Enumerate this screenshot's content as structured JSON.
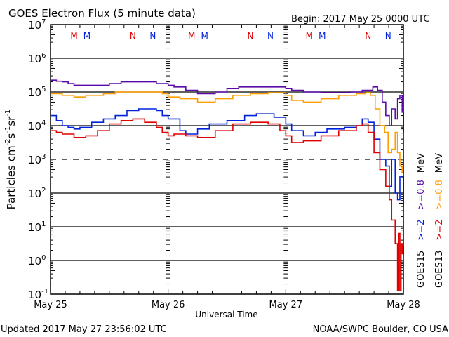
{
  "chart_data": {
    "type": "line",
    "title": "GOES Electron Flux (5 minute data)",
    "subtitle": "Begin: 2017 May 25 0000 UTC",
    "xlabel": "Universal Time",
    "ylabel_parts": [
      "Particles cm",
      "-2",
      "s",
      "-1",
      "sr",
      "-1"
    ],
    "yscale": "log",
    "ylim_exp": [
      -1,
      7
    ],
    "ytick_labels": [
      {
        "base": "10",
        "exp": "7"
      },
      {
        "base": "10",
        "exp": "6"
      },
      {
        "base": "10",
        "exp": "5"
      },
      {
        "base": "10",
        "exp": "4"
      },
      {
        "base": "10",
        "exp": "3"
      },
      {
        "base": "10",
        "exp": "2"
      },
      {
        "base": "10",
        "exp": "1"
      },
      {
        "base": "10",
        "exp": "0"
      },
      {
        "base": "10",
        "exp": "-1"
      }
    ],
    "xlim_days": [
      0,
      3
    ],
    "xtick_labels": [
      "May 25",
      "May 26",
      "May 27",
      "May 28"
    ],
    "grid": "horizontal lines at each decade; dashed at 10^3",
    "markers": [
      {
        "label": "M",
        "color": "#e00000",
        "day": 0.2
      },
      {
        "label": "M",
        "color": "#0022dd",
        "day": 0.31
      },
      {
        "label": "N",
        "color": "#e00000",
        "day": 0.7
      },
      {
        "label": "N",
        "color": "#0022dd",
        "day": 0.87
      },
      {
        "label": "M",
        "color": "#e00000",
        "day": 1.2
      },
      {
        "label": "M",
        "color": "#0022dd",
        "day": 1.31
      },
      {
        "label": "N",
        "color": "#e00000",
        "day": 1.7
      },
      {
        "label": "N",
        "color": "#0022dd",
        "day": 1.87
      },
      {
        "label": "M",
        "color": "#e00000",
        "day": 2.2
      },
      {
        "label": "M",
        "color": "#0022dd",
        "day": 2.31
      },
      {
        "label": "N",
        "color": "#e00000",
        "day": 2.7
      },
      {
        "label": "N",
        "color": "#0022dd",
        "day": 2.87
      }
    ],
    "series": [
      {
        "name": "GOES15 >=0.8 MeV",
        "color": "#5a0aa8",
        "x": [
          0,
          0.05,
          0.1,
          0.15,
          0.2,
          0.3,
          0.4,
          0.5,
          0.6,
          0.7,
          0.8,
          0.9,
          1.0,
          1.05,
          1.15,
          1.25,
          1.4,
          1.5,
          1.6,
          1.7,
          1.8,
          1.9,
          2.0,
          2.05,
          2.15,
          2.3,
          2.45,
          2.55,
          2.65,
          2.7,
          2.74,
          2.78,
          2.82,
          2.85,
          2.88,
          2.9,
          2.93,
          2.95,
          2.97,
          2.99,
          3.0
        ],
        "y_log10": [
          5.35,
          5.32,
          5.3,
          5.25,
          5.2,
          5.2,
          5.2,
          5.25,
          5.3,
          5.3,
          5.3,
          5.25,
          5.2,
          5.15,
          5.05,
          4.95,
          5.0,
          5.1,
          5.15,
          5.15,
          5.15,
          5.15,
          5.1,
          5.05,
          5.0,
          4.98,
          4.98,
          5.0,
          5.05,
          5.05,
          5.15,
          5.05,
          4.7,
          4.3,
          4.0,
          4.5,
          4.2,
          4.8,
          4.9,
          4.4,
          3.8
        ]
      },
      {
        "name": "GOES13 >=0.8 MeV",
        "color": "#ff9e00",
        "x": [
          0,
          0.05,
          0.1,
          0.2,
          0.3,
          0.45,
          0.55,
          0.65,
          0.75,
          0.85,
          0.95,
          1.0,
          1.1,
          1.25,
          1.4,
          1.55,
          1.7,
          1.85,
          1.95,
          2.0,
          2.05,
          2.15,
          2.3,
          2.45,
          2.6,
          2.68,
          2.72,
          2.76,
          2.8,
          2.84,
          2.87,
          2.9,
          2.93,
          2.95,
          2.97,
          2.99,
          3.0
        ],
        "y_log10": [
          4.95,
          4.95,
          4.9,
          4.85,
          4.9,
          4.95,
          5.0,
          5.0,
          5.0,
          5.0,
          4.95,
          4.85,
          4.8,
          4.7,
          4.8,
          4.9,
          4.95,
          4.98,
          4.98,
          4.9,
          4.75,
          4.7,
          4.8,
          4.9,
          4.95,
          4.98,
          4.9,
          4.5,
          4.0,
          3.8,
          3.2,
          3.3,
          3.8,
          3.2,
          2.8,
          2.6,
          2.7
        ]
      },
      {
        "name": "GOES15 >=2 MeV",
        "color": "#0022dd",
        "x": [
          0,
          0.05,
          0.1,
          0.15,
          0.2,
          0.25,
          0.35,
          0.45,
          0.55,
          0.65,
          0.75,
          0.85,
          0.9,
          0.95,
          1.0,
          1.1,
          1.15,
          1.25,
          1.35,
          1.5,
          1.65,
          1.75,
          1.8,
          1.9,
          2.0,
          2.05,
          2.15,
          2.25,
          2.35,
          2.5,
          2.6,
          2.65,
          2.7,
          2.75,
          2.8,
          2.85,
          2.88,
          2.9,
          2.93,
          2.95,
          2.97,
          3.0
        ],
        "y_log10": [
          4.3,
          4.15,
          4.0,
          3.95,
          3.9,
          3.95,
          4.1,
          4.2,
          4.3,
          4.45,
          4.5,
          4.5,
          4.45,
          4.3,
          4.2,
          3.85,
          3.75,
          3.9,
          4.05,
          4.15,
          4.3,
          4.35,
          4.35,
          4.25,
          4.05,
          3.85,
          3.7,
          3.8,
          3.9,
          3.95,
          4.0,
          4.2,
          4.1,
          3.6,
          3.0,
          2.8,
          2.2,
          3.0,
          2.0,
          1.8,
          2.5,
          1.6
        ]
      },
      {
        "name": "GOES13 >=2 MeV",
        "color": "#e00000",
        "x": [
          0,
          0.05,
          0.1,
          0.2,
          0.3,
          0.4,
          0.5,
          0.6,
          0.7,
          0.8,
          0.9,
          0.95,
          1.0,
          1.05,
          1.15,
          1.25,
          1.4,
          1.55,
          1.7,
          1.85,
          1.95,
          2.0,
          2.05,
          2.15,
          2.3,
          2.45,
          2.6,
          2.65,
          2.7,
          2.75,
          2.8,
          2.85,
          2.88,
          2.9,
          2.93,
          2.95,
          2.96,
          2.97,
          2.98,
          2.99,
          3.0
        ],
        "y_log10": [
          3.85,
          3.8,
          3.75,
          3.65,
          3.7,
          3.85,
          4.05,
          4.15,
          4.2,
          4.1,
          3.95,
          3.8,
          3.7,
          3.75,
          3.7,
          3.65,
          3.85,
          4.05,
          4.1,
          4.05,
          3.85,
          3.7,
          3.5,
          3.55,
          3.7,
          3.85,
          4.0,
          4.05,
          3.8,
          3.2,
          2.7,
          2.2,
          1.8,
          1.2,
          0.5,
          -0.9,
          0.8,
          -0.9,
          0.5,
          0.2,
          0.4
        ]
      }
    ],
    "legend": [
      {
        "group": "GOES15",
        "items": [
          {
            "label": ">=2",
            "color": "#0022dd"
          },
          {
            "label": ">=0.8",
            "color": "#5a0aa8"
          }
        ],
        "unit": "MeV"
      },
      {
        "group": "GOES13",
        "items": [
          {
            "label": ">=2",
            "color": "#e00000"
          },
          {
            "label": ">=0.8",
            "color": "#ff9e00"
          }
        ],
        "unit": "MeV"
      }
    ],
    "legend_position": "right, vertical"
  },
  "footer": {
    "updated": "Updated 2017 May 27 23:56:02 UTC",
    "credit": "NOAA/SWPC Boulder, CO USA"
  }
}
